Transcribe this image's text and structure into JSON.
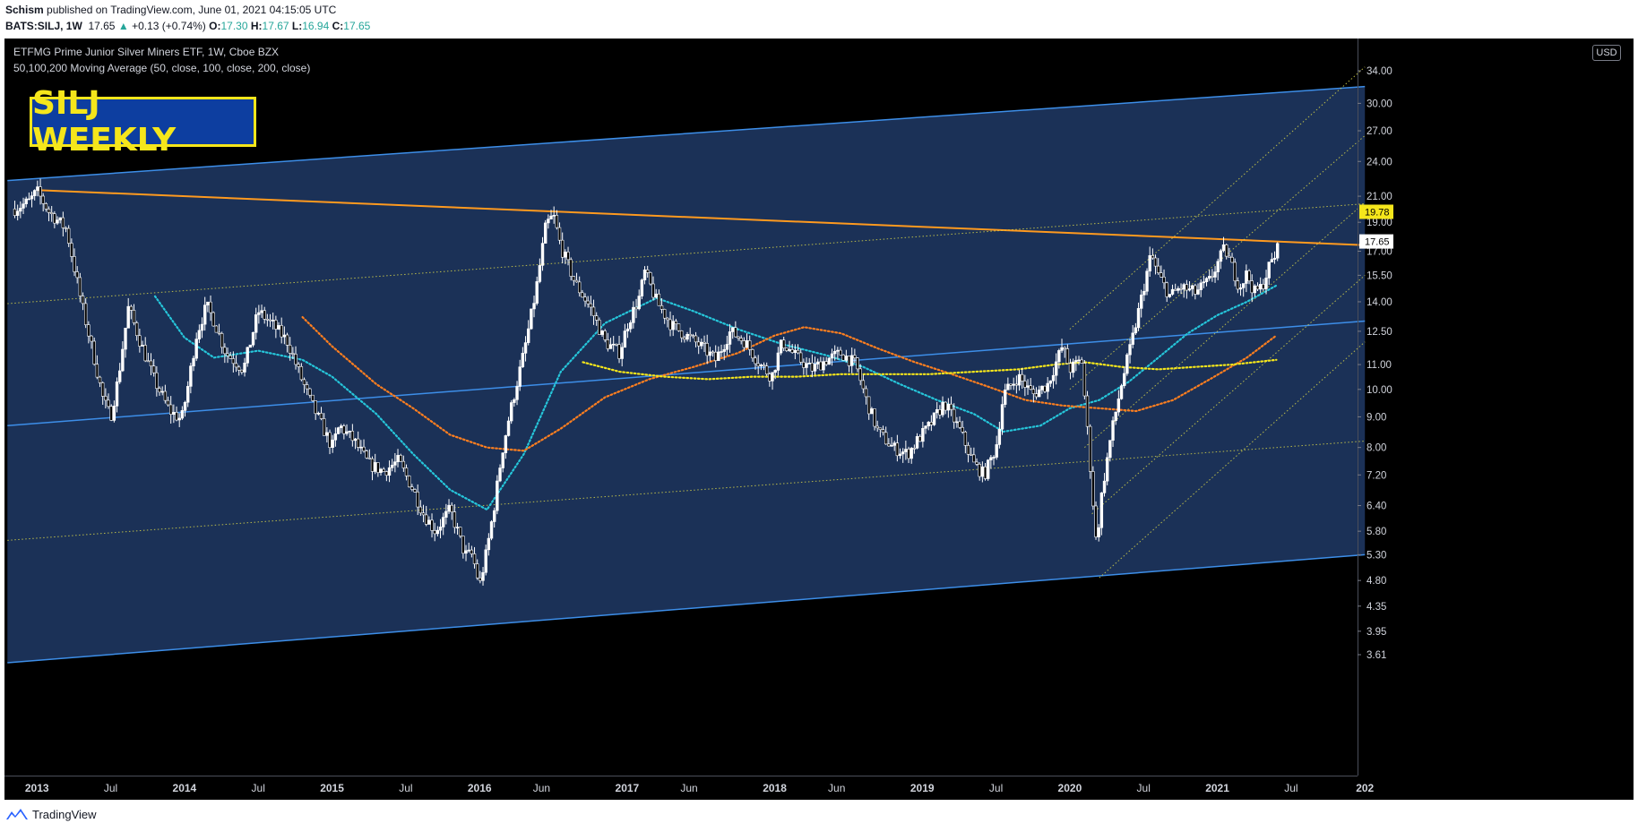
{
  "header": {
    "author": "Schism",
    "published_text": " published on TradingView.com, June 01, 2021 04:15:05 UTC",
    "symbol_label": "BATS:SILJ, 1W",
    "last": "17.65",
    "arrow": "▲",
    "change": "+0.13 (+0.74%)",
    "o_label": "O:",
    "o_value": "17.30",
    "h_label": "H:",
    "h_value": "17.67",
    "l_label": "L:",
    "l_value": "16.94",
    "c_label": "C:",
    "c_value": "17.65"
  },
  "overlay": {
    "title": "ETFMG Prime Junior Silver Miners ETF, 1W, Cboe BZX",
    "ma_label": "50,100,200 Moving Average (50, close, 100, close, 200, close)",
    "badge_text": "SILJ WEEKLY",
    "currency": "USD"
  },
  "footer": {
    "brand": "TradingView"
  },
  "colors": {
    "background": "#000000",
    "channel_fill": "#1b3157",
    "channel_line": "#3d8ee8",
    "resistance": "#ff9a1f",
    "fib_dotted": "#d4d24a",
    "candle": "#ffffff",
    "ma50": "#26c6da",
    "ma100": "#ff7f1f",
    "ma200": "#f5e61b",
    "badge_bg": "#0d3ea0",
    "badge_text": "#f5e61b",
    "up": "#26a69a",
    "current_price_tag": "#ffffff",
    "level_tag": "#f5e61b"
  },
  "chart_data": {
    "type": "candlestick",
    "scale": "log",
    "y_ticks": [
      34.0,
      30.0,
      27.0,
      24.0,
      21.0,
      19.0,
      17.0,
      15.5,
      14.0,
      12.5,
      11.0,
      10.0,
      9.0,
      8.0,
      7.2,
      6.4,
      5.8,
      5.3,
      4.8,
      4.35,
      3.95,
      3.61
    ],
    "x_ticks": [
      {
        "label": "2013",
        "major": true,
        "t": 2013.0
      },
      {
        "label": "Jul",
        "major": false,
        "t": 2013.5
      },
      {
        "label": "2014",
        "major": true,
        "t": 2014.0
      },
      {
        "label": "Jul",
        "major": false,
        "t": 2014.5
      },
      {
        "label": "2015",
        "major": true,
        "t": 2015.0
      },
      {
        "label": "Jul",
        "major": false,
        "t": 2015.5
      },
      {
        "label": "2016",
        "major": true,
        "t": 2016.0
      },
      {
        "label": "Jun",
        "major": false,
        "t": 2016.42
      },
      {
        "label": "2017",
        "major": true,
        "t": 2017.0
      },
      {
        "label": "Jun",
        "major": false,
        "t": 2017.42
      },
      {
        "label": "2018",
        "major": true,
        "t": 2018.0
      },
      {
        "label": "Jun",
        "major": false,
        "t": 2018.42
      },
      {
        "label": "2019",
        "major": true,
        "t": 2019.0
      },
      {
        "label": "Jul",
        "major": false,
        "t": 2019.5
      },
      {
        "label": "2020",
        "major": true,
        "t": 2020.0
      },
      {
        "label": "Jul",
        "major": false,
        "t": 2020.5
      },
      {
        "label": "2021",
        "major": true,
        "t": 2021.0
      },
      {
        "label": "Jul",
        "major": false,
        "t": 2021.5
      },
      {
        "label": "202",
        "major": true,
        "t": 2022.0
      }
    ],
    "price_tags": [
      {
        "value": 19.78,
        "label": "19.78",
        "kind": "level"
      },
      {
        "value": 17.65,
        "label": "17.65",
        "kind": "current"
      }
    ],
    "price_path": [
      [
        2012.85,
        20.0
      ],
      [
        2012.95,
        20.6
      ],
      [
        2013.0,
        21.4
      ],
      [
        2013.08,
        19.8
      ],
      [
        2013.2,
        18.5
      ],
      [
        2013.3,
        14.0
      ],
      [
        2013.38,
        11.5
      ],
      [
        2013.45,
        9.6
      ],
      [
        2013.5,
        9.0
      ],
      [
        2013.55,
        10.4
      ],
      [
        2013.62,
        13.7
      ],
      [
        2013.7,
        12.0
      ],
      [
        2013.8,
        10.3
      ],
      [
        2013.9,
        9.2
      ],
      [
        2013.98,
        8.9
      ],
      [
        2014.02,
        10.0
      ],
      [
        2014.08,
        12.3
      ],
      [
        2014.15,
        13.8
      ],
      [
        2014.2,
        13.0
      ],
      [
        2014.28,
        11.5
      ],
      [
        2014.4,
        10.8
      ],
      [
        2014.5,
        13.5
      ],
      [
        2014.6,
        12.8
      ],
      [
        2014.7,
        12.0
      ],
      [
        2014.78,
        10.6
      ],
      [
        2014.85,
        9.6
      ],
      [
        2014.95,
        8.5
      ],
      [
        2015.0,
        8.0
      ],
      [
        2015.05,
        8.7
      ],
      [
        2015.15,
        8.2
      ],
      [
        2015.25,
        7.5
      ],
      [
        2015.35,
        7.3
      ],
      [
        2015.45,
        7.6
      ],
      [
        2015.55,
        6.8
      ],
      [
        2015.62,
        6.2
      ],
      [
        2015.7,
        5.8
      ],
      [
        2015.8,
        6.3
      ],
      [
        2015.85,
        5.8
      ],
      [
        2015.9,
        5.3
      ],
      [
        2015.95,
        5.3
      ],
      [
        2016.0,
        4.7
      ],
      [
        2016.05,
        5.4
      ],
      [
        2016.1,
        6.4
      ],
      [
        2016.15,
        7.8
      ],
      [
        2016.2,
        9.0
      ],
      [
        2016.3,
        11.5
      ],
      [
        2016.38,
        14.5
      ],
      [
        2016.45,
        18.8
      ],
      [
        2016.5,
        19.5
      ],
      [
        2016.55,
        17.3
      ],
      [
        2016.65,
        15.0
      ],
      [
        2016.75,
        13.7
      ],
      [
        2016.85,
        12.0
      ],
      [
        2016.95,
        11.5
      ],
      [
        2017.0,
        12.8
      ],
      [
        2017.08,
        14.2
      ],
      [
        2017.12,
        15.7
      ],
      [
        2017.2,
        14.0
      ],
      [
        2017.3,
        12.8
      ],
      [
        2017.4,
        12.3
      ],
      [
        2017.5,
        11.8
      ],
      [
        2017.6,
        11.2
      ],
      [
        2017.7,
        12.5
      ],
      [
        2017.8,
        12.0
      ],
      [
        2017.9,
        11.0
      ],
      [
        2017.98,
        10.5
      ],
      [
        2018.05,
        12.0
      ],
      [
        2018.15,
        11.3
      ],
      [
        2018.25,
        10.8
      ],
      [
        2018.35,
        11.2
      ],
      [
        2018.45,
        11.5
      ],
      [
        2018.55,
        11.0
      ],
      [
        2018.62,
        9.6
      ],
      [
        2018.7,
        8.5
      ],
      [
        2018.8,
        8.0
      ],
      [
        2018.9,
        7.8
      ],
      [
        2018.98,
        8.3
      ],
      [
        2019.05,
        8.7
      ],
      [
        2019.15,
        9.5
      ],
      [
        2019.25,
        8.6
      ],
      [
        2019.35,
        7.5
      ],
      [
        2019.42,
        7.2
      ],
      [
        2019.5,
        8.0
      ],
      [
        2019.55,
        9.8
      ],
      [
        2019.65,
        10.5
      ],
      [
        2019.75,
        9.8
      ],
      [
        2019.85,
        10.2
      ],
      [
        2019.95,
        11.8
      ],
      [
        2020.0,
        10.8
      ],
      [
        2020.08,
        11.2
      ],
      [
        2020.12,
        8.5
      ],
      [
        2020.18,
        5.5
      ],
      [
        2020.22,
        6.8
      ],
      [
        2020.28,
        8.4
      ],
      [
        2020.35,
        10.2
      ],
      [
        2020.42,
        12.0
      ],
      [
        2020.48,
        14.0
      ],
      [
        2020.55,
        16.8
      ],
      [
        2020.6,
        15.5
      ],
      [
        2020.68,
        14.3
      ],
      [
        2020.75,
        14.8
      ],
      [
        2020.85,
        14.5
      ],
      [
        2020.95,
        15.2
      ],
      [
        2021.0,
        16.2
      ],
      [
        2021.05,
        17.2
      ],
      [
        2021.1,
        16.0
      ],
      [
        2021.15,
        14.8
      ],
      [
        2021.2,
        15.6
      ],
      [
        2021.25,
        14.5
      ],
      [
        2021.3,
        14.8
      ],
      [
        2021.35,
        16.0
      ],
      [
        2021.4,
        16.9
      ],
      [
        2021.42,
        17.6
      ]
    ],
    "moving_averages": [
      {
        "name": "MA50",
        "color_key": "ma50",
        "points": [
          [
            2013.8,
            14.3
          ],
          [
            2014.0,
            12.2
          ],
          [
            2014.2,
            11.3
          ],
          [
            2014.5,
            11.6
          ],
          [
            2014.8,
            11.2
          ],
          [
            2015.0,
            10.5
          ],
          [
            2015.3,
            9.1
          ],
          [
            2015.55,
            7.8
          ],
          [
            2015.8,
            6.8
          ],
          [
            2016.05,
            6.3
          ],
          [
            2016.3,
            7.8
          ],
          [
            2016.55,
            10.7
          ],
          [
            2016.85,
            12.9
          ],
          [
            2017.2,
            14.2
          ],
          [
            2017.45,
            13.5
          ],
          [
            2017.75,
            12.6
          ],
          [
            2018.05,
            11.9
          ],
          [
            2018.35,
            11.4
          ],
          [
            2018.6,
            10.9
          ],
          [
            2018.85,
            10.2
          ],
          [
            2019.1,
            9.6
          ],
          [
            2019.35,
            9.1
          ],
          [
            2019.55,
            8.5
          ],
          [
            2019.8,
            8.7
          ],
          [
            2020.0,
            9.3
          ],
          [
            2020.2,
            9.6
          ],
          [
            2020.4,
            10.3
          ],
          [
            2020.6,
            11.3
          ],
          [
            2020.8,
            12.4
          ],
          [
            2021.0,
            13.3
          ],
          [
            2021.2,
            14.0
          ],
          [
            2021.4,
            14.9
          ]
        ]
      },
      {
        "name": "MA100",
        "color_key": "ma100",
        "points": [
          [
            2014.8,
            13.2
          ],
          [
            2015.0,
            11.8
          ],
          [
            2015.3,
            10.2
          ],
          [
            2015.55,
            9.3
          ],
          [
            2015.8,
            8.4
          ],
          [
            2016.05,
            8.0
          ],
          [
            2016.3,
            7.9
          ],
          [
            2016.55,
            8.6
          ],
          [
            2016.85,
            9.7
          ],
          [
            2017.15,
            10.4
          ],
          [
            2017.45,
            10.9
          ],
          [
            2017.75,
            11.5
          ],
          [
            2018.0,
            12.3
          ],
          [
            2018.2,
            12.7
          ],
          [
            2018.45,
            12.4
          ],
          [
            2018.7,
            11.7
          ],
          [
            2018.95,
            11.1
          ],
          [
            2019.2,
            10.6
          ],
          [
            2019.45,
            10.1
          ],
          [
            2019.7,
            9.6
          ],
          [
            2019.95,
            9.4
          ],
          [
            2020.2,
            9.3
          ],
          [
            2020.45,
            9.2
          ],
          [
            2020.7,
            9.6
          ],
          [
            2020.95,
            10.4
          ],
          [
            2021.2,
            11.3
          ],
          [
            2021.4,
            12.3
          ]
        ]
      },
      {
        "name": "MA200",
        "color_key": "ma200",
        "points": [
          [
            2016.7,
            11.1
          ],
          [
            2016.95,
            10.7
          ],
          [
            2017.25,
            10.5
          ],
          [
            2017.55,
            10.4
          ],
          [
            2017.85,
            10.5
          ],
          [
            2018.15,
            10.5
          ],
          [
            2018.45,
            10.6
          ],
          [
            2018.75,
            10.6
          ],
          [
            2019.05,
            10.6
          ],
          [
            2019.35,
            10.7
          ],
          [
            2019.65,
            10.8
          ],
          [
            2019.9,
            11.0
          ],
          [
            2020.1,
            11.1
          ],
          [
            2020.35,
            10.9
          ],
          [
            2020.6,
            10.8
          ],
          [
            2020.85,
            10.9
          ],
          [
            2021.1,
            11.0
          ],
          [
            2021.4,
            11.2
          ]
        ]
      }
    ],
    "drawings": [
      {
        "kind": "channel_upper",
        "from": [
          2012.8,
          22.3
        ],
        "to": [
          2022.0,
          32.0
        ]
      },
      {
        "kind": "channel_mid",
        "from": [
          2012.8,
          8.7
        ],
        "to": [
          2022.0,
          13.0
        ]
      },
      {
        "kind": "channel_lower",
        "from": [
          2012.8,
          3.5
        ],
        "to": [
          2022.0,
          5.3
        ]
      },
      {
        "kind": "resistance",
        "from": [
          2013.0,
          21.5
        ],
        "to": [
          2022.0,
          17.4
        ]
      },
      {
        "kind": "fib",
        "from": [
          2012.8,
          13.9
        ],
        "to": [
          2022.0,
          20.4
        ]
      },
      {
        "kind": "fib",
        "from": [
          2012.8,
          5.6
        ],
        "to": [
          2022.0,
          8.2
        ]
      },
      {
        "kind": "fib_diag",
        "from": [
          2020.2,
          4.85
        ],
        "to": [
          2022.0,
          12.0
        ]
      },
      {
        "kind": "fib_diag",
        "from": [
          2020.15,
          6.2
        ],
        "to": [
          2022.0,
          15.5
        ]
      },
      {
        "kind": "fib_diag",
        "from": [
          2020.1,
          8.0
        ],
        "to": [
          2022.0,
          20.5
        ]
      },
      {
        "kind": "fib_diag",
        "from": [
          2020.0,
          10.0
        ],
        "to": [
          2022.0,
          26.5
        ]
      },
      {
        "kind": "fib_diag",
        "from": [
          2020.0,
          12.6
        ],
        "to": [
          2022.0,
          34.5
        ]
      }
    ]
  }
}
